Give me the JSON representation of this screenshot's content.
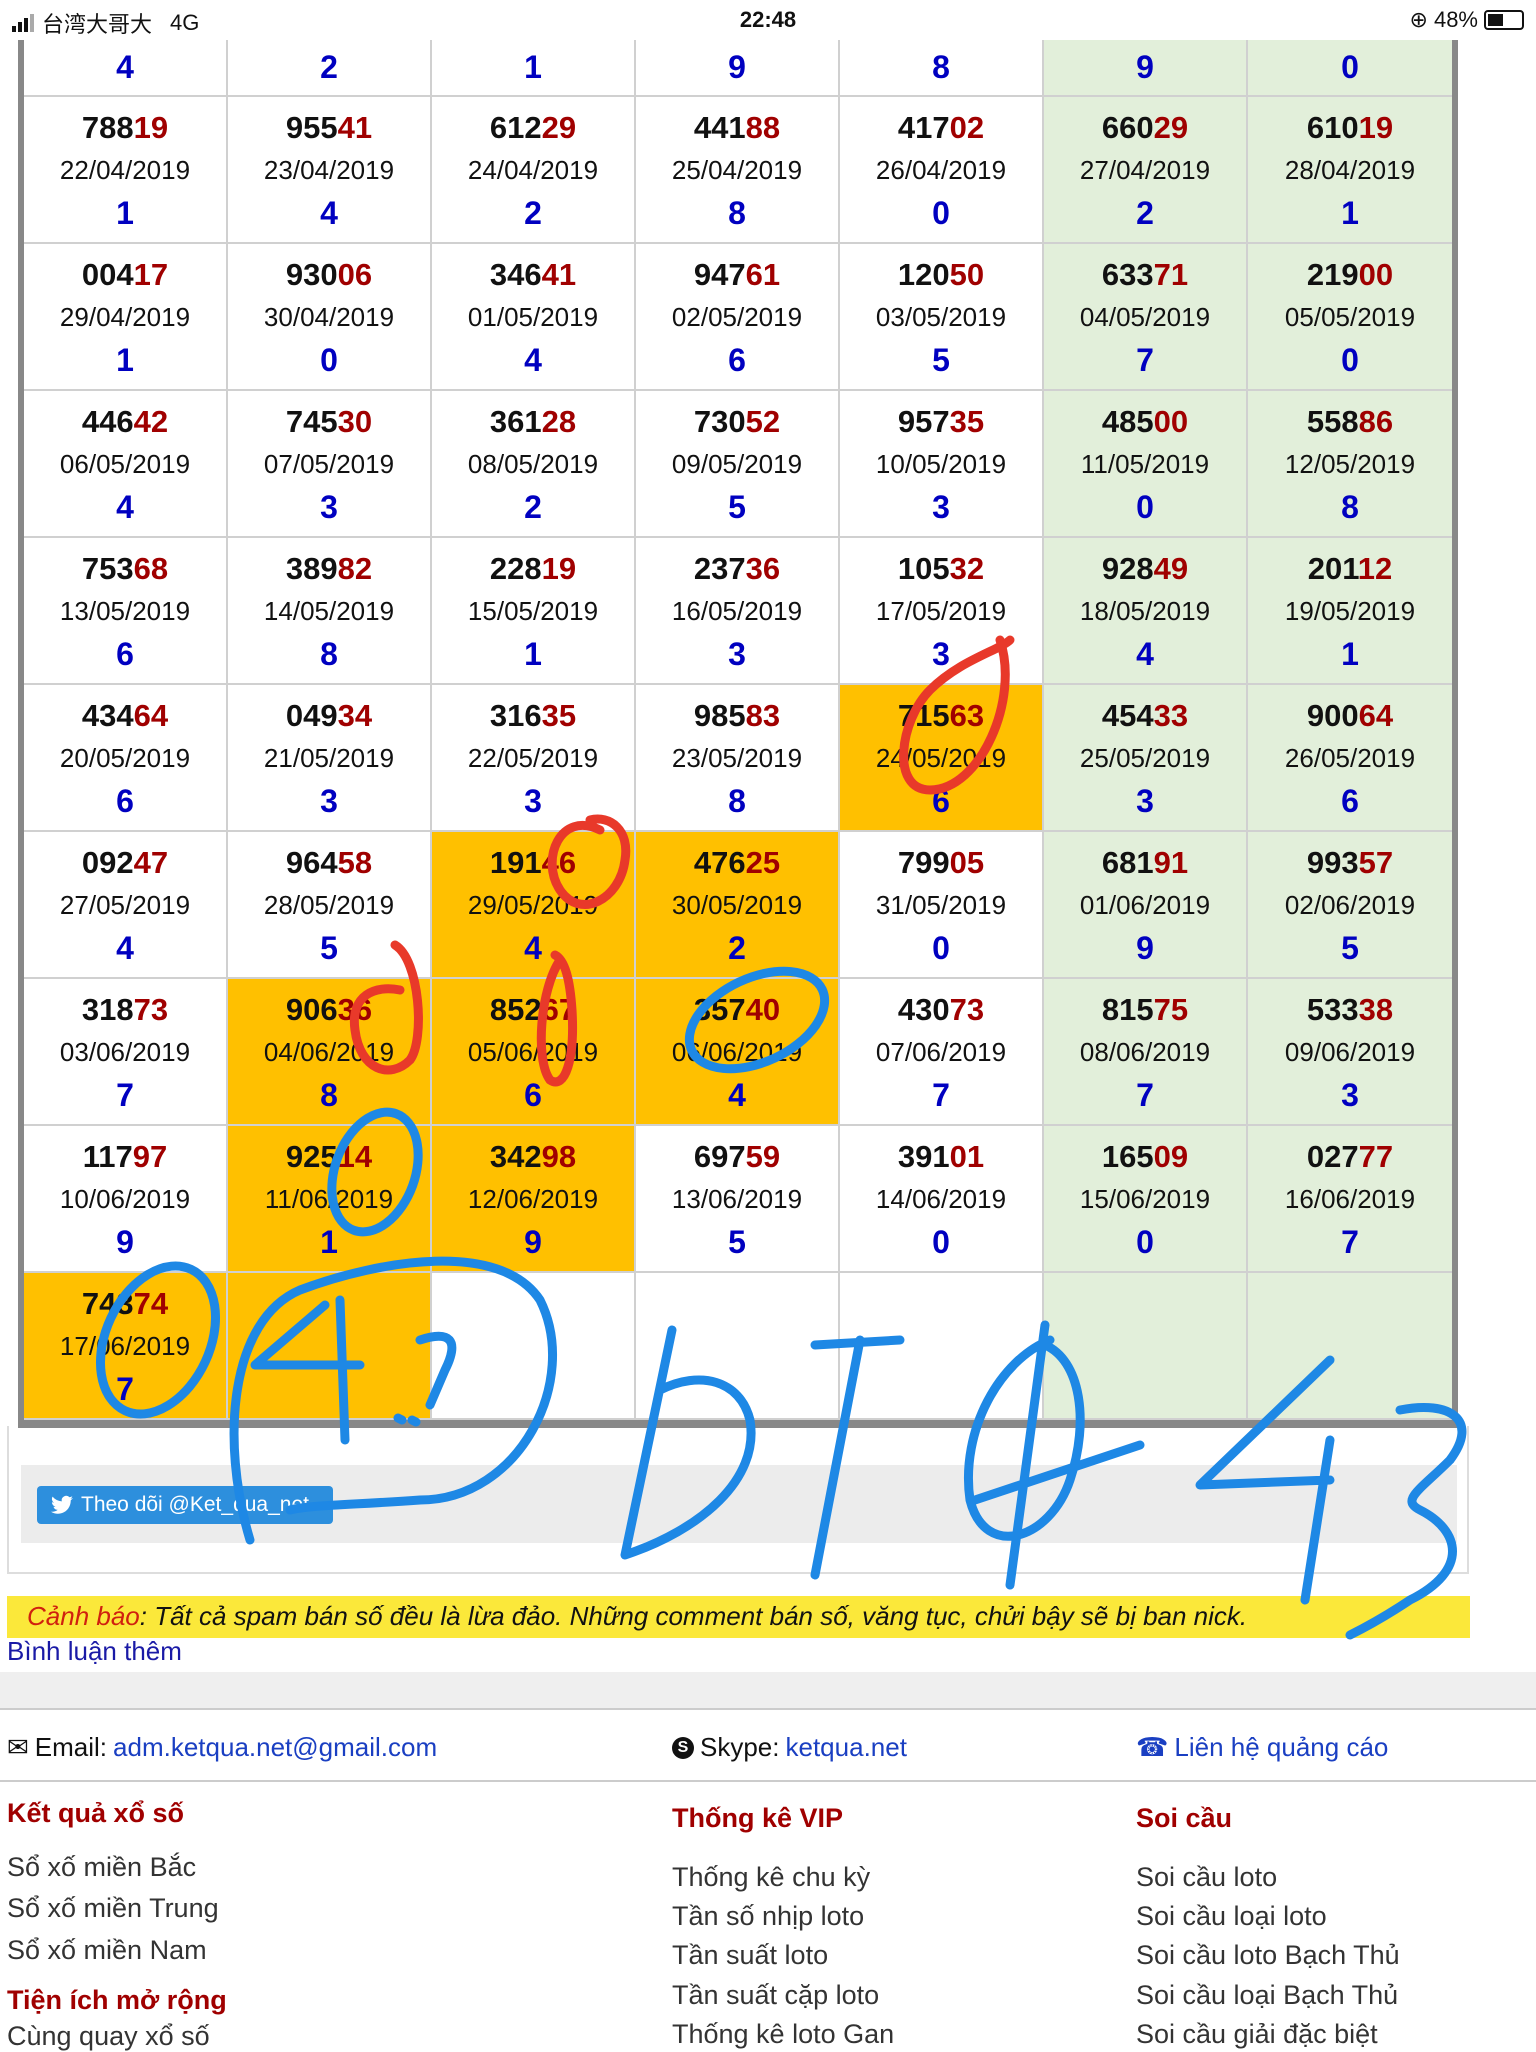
{
  "status_bar": {
    "carrier": "台湾大哥大",
    "network": "4G",
    "time": "22:48",
    "battery": "48%",
    "battery_level": 0.48
  },
  "colors": {
    "highlight": "#ffc000",
    "weekend_column": "#e2efda",
    "last_two_digits": "#a00000",
    "digit": "#0000c0",
    "warning_bg": "#fbe83a"
  },
  "table": {
    "top_row_digits": [
      "4",
      "2",
      "1",
      "9",
      "8",
      "9",
      "0"
    ],
    "rows": [
      [
        {
          "n": "78819",
          "d": "22/04/2019",
          "g": "1"
        },
        {
          "n": "95541",
          "d": "23/04/2019",
          "g": "4"
        },
        {
          "n": "61229",
          "d": "24/04/2019",
          "g": "2"
        },
        {
          "n": "44188",
          "d": "25/04/2019",
          "g": "8"
        },
        {
          "n": "41702",
          "d": "26/04/2019",
          "g": "0"
        },
        {
          "n": "66029",
          "d": "27/04/2019",
          "g": "2"
        },
        {
          "n": "61019",
          "d": "28/04/2019",
          "g": "1"
        }
      ],
      [
        {
          "n": "00417",
          "d": "29/04/2019",
          "g": "1"
        },
        {
          "n": "93006",
          "d": "30/04/2019",
          "g": "0"
        },
        {
          "n": "34641",
          "d": "01/05/2019",
          "g": "4"
        },
        {
          "n": "94761",
          "d": "02/05/2019",
          "g": "6"
        },
        {
          "n": "12050",
          "d": "03/05/2019",
          "g": "5"
        },
        {
          "n": "63371",
          "d": "04/05/2019",
          "g": "7"
        },
        {
          "n": "21900",
          "d": "05/05/2019",
          "g": "0"
        }
      ],
      [
        {
          "n": "44642",
          "d": "06/05/2019",
          "g": "4"
        },
        {
          "n": "74530",
          "d": "07/05/2019",
          "g": "3"
        },
        {
          "n": "36128",
          "d": "08/05/2019",
          "g": "2"
        },
        {
          "n": "73052",
          "d": "09/05/2019",
          "g": "5"
        },
        {
          "n": "95735",
          "d": "10/05/2019",
          "g": "3"
        },
        {
          "n": "48500",
          "d": "11/05/2019",
          "g": "0"
        },
        {
          "n": "55886",
          "d": "12/05/2019",
          "g": "8"
        }
      ],
      [
        {
          "n": "75368",
          "d": "13/05/2019",
          "g": "6"
        },
        {
          "n": "38982",
          "d": "14/05/2019",
          "g": "8"
        },
        {
          "n": "22819",
          "d": "15/05/2019",
          "g": "1"
        },
        {
          "n": "23736",
          "d": "16/05/2019",
          "g": "3"
        },
        {
          "n": "10532",
          "d": "17/05/2019",
          "g": "3"
        },
        {
          "n": "92849",
          "d": "18/05/2019",
          "g": "4"
        },
        {
          "n": "20112",
          "d": "19/05/2019",
          "g": "1"
        }
      ],
      [
        {
          "n": "43464",
          "d": "20/05/2019",
          "g": "6"
        },
        {
          "n": "04934",
          "d": "21/05/2019",
          "g": "3"
        },
        {
          "n": "31635",
          "d": "22/05/2019",
          "g": "3"
        },
        {
          "n": "98583",
          "d": "23/05/2019",
          "g": "8"
        },
        {
          "n": "71563",
          "d": "24/05/2019",
          "g": "6",
          "hl": true
        },
        {
          "n": "45433",
          "d": "25/05/2019",
          "g": "3"
        },
        {
          "n": "90064",
          "d": "26/05/2019",
          "g": "6"
        }
      ],
      [
        {
          "n": "09247",
          "d": "27/05/2019",
          "g": "4"
        },
        {
          "n": "96458",
          "d": "28/05/2019",
          "g": "5"
        },
        {
          "n": "19146",
          "d": "29/05/2019",
          "g": "4",
          "hl": true
        },
        {
          "n": "47625",
          "d": "30/05/2019",
          "g": "2",
          "hl": true
        },
        {
          "n": "79905",
          "d": "31/05/2019",
          "g": "0"
        },
        {
          "n": "68191",
          "d": "01/06/2019",
          "g": "9"
        },
        {
          "n": "99357",
          "d": "02/06/2019",
          "g": "5"
        }
      ],
      [
        {
          "n": "31873",
          "d": "03/06/2019",
          "g": "7"
        },
        {
          "n": "90636",
          "d": "04/06/2019",
          "g": "8",
          "hl": true
        },
        {
          "n": "85267",
          "d": "05/06/2019",
          "g": "6",
          "hl": true
        },
        {
          "n": "35740",
          "d": "06/06/2019",
          "g": "4",
          "hl": true
        },
        {
          "n": "43073",
          "d": "07/06/2019",
          "g": "7"
        },
        {
          "n": "81575",
          "d": "08/06/2019",
          "g": "7"
        },
        {
          "n": "53338",
          "d": "09/06/2019",
          "g": "3"
        }
      ],
      [
        {
          "n": "11797",
          "d": "10/06/2019",
          "g": "9"
        },
        {
          "n": "92514",
          "d": "11/06/2019",
          "g": "1",
          "hl": true
        },
        {
          "n": "34298",
          "d": "12/06/2019",
          "g": "9",
          "hl": true
        },
        {
          "n": "69759",
          "d": "13/06/2019",
          "g": "5"
        },
        {
          "n": "39101",
          "d": "14/06/2019",
          "g": "0"
        },
        {
          "n": "16509",
          "d": "15/06/2019",
          "g": "0"
        },
        {
          "n": "02777",
          "d": "16/06/2019",
          "g": "7"
        }
      ],
      [
        {
          "n": "74374",
          "d": "17/06/2019",
          "g": "7",
          "hl": true
        },
        {
          "hl": true
        },
        {},
        {},
        {},
        {},
        {}
      ]
    ]
  },
  "handwritten_note": "4..? 5T043",
  "twitter_button": "Theo dõi @Ket_qua_net",
  "warning": {
    "label": "Cảnh báo",
    "text": ": Tất cả spam bán số đều là lừa đảo. Những comment bán số, văng tục, chửi bậy sẽ bị ban nick."
  },
  "more_comments": "Bình luận thêm",
  "contact": {
    "email_label": "Email:",
    "email": "adm.ketqua.net@gmail.com",
    "skype_label": "Skype:",
    "skype": "ketqua.net",
    "ads": "Liên hệ quảng cáo"
  },
  "footer": {
    "col1": {
      "title": "Kết quả xổ số",
      "items": [
        "Sổ xố miền Bắc",
        "Sổ xố miền Trung",
        "Sổ xố miền Nam"
      ],
      "title2": "Tiện ích mở rộng",
      "items2": [
        "Cùng quay xổ số"
      ]
    },
    "col2": {
      "title": "Thống kê VIP",
      "items": [
        "Thống kê chu kỳ",
        "Tần số nhịp loto",
        "Tần suất loto",
        "Tần suất cặp loto",
        "Thống kê loto Gan"
      ]
    },
    "col3": {
      "title": "Soi cầu",
      "items": [
        "Soi cầu loto",
        "Soi cầu loại loto",
        "Soi cầu loto Bạch Thủ",
        "Soi cầu loại Bạch Thủ",
        "Soi cầu giải đặc biệt"
      ]
    }
  }
}
